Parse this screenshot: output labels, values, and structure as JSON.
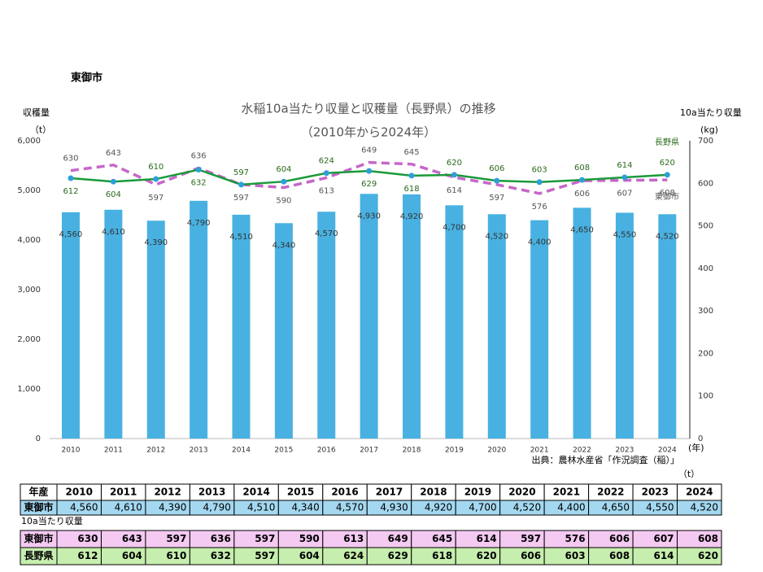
{
  "heading": "東御市",
  "chart_data": {
    "type": "bar-line",
    "title": "水稲10a当たり収量と収穫量（長野県）の推移",
    "subtitle": "（2010年から2024年）",
    "y_label": "収穫量",
    "y_unit": "（t）",
    "y2_label": "10a当たり収量",
    "y2_unit": "(kg)",
    "x_unit": "(年)",
    "categories": [
      "2010",
      "2011",
      "2012",
      "2013",
      "2014",
      "2015",
      "2016",
      "2017",
      "2018",
      "2019",
      "2020",
      "2021",
      "2022",
      "2023",
      "2024"
    ],
    "ylim": [
      0,
      6000
    ],
    "yticks": [
      0,
      {
        "value": 1000,
        "label": "1,000"
      },
      {
        "value": 2000,
        "label": "2,000"
      },
      {
        "value": 3000,
        "label": "3,000"
      },
      {
        "value": 4000,
        "label": "4,000"
      },
      {
        "value": 5000,
        "label": "5,000"
      },
      {
        "value": 6000,
        "label": "6,000"
      }
    ],
    "y2lim": [
      0,
      700
    ],
    "y2ticks": [
      0,
      100,
      200,
      300,
      400,
      500,
      600,
      700
    ],
    "series": [
      {
        "name": "東御市",
        "type": "bar",
        "color": "#48b1e1",
        "values": [
          4560,
          4610,
          4390,
          4790,
          4510,
          4340,
          4570,
          4930,
          4920,
          4700,
          4520,
          4400,
          4650,
          4550,
          4520
        ],
        "value_labels": [
          "4,560",
          "4,610",
          "4,390",
          "4,790",
          "4,510",
          "4,340",
          "4,570",
          "4,930",
          "4,920",
          "4,700",
          "4,520",
          "4,400",
          "4,650",
          "4,550",
          "4,520"
        ]
      },
      {
        "name": "東御市",
        "type": "line",
        "axis": "y2",
        "color": "#c667c9",
        "dashed": true,
        "values": [
          630,
          643,
          597,
          636,
          597,
          590,
          613,
          649,
          645,
          614,
          597,
          576,
          606,
          607,
          608
        ]
      },
      {
        "name": "長野県",
        "type": "line",
        "axis": "y2",
        "color": "#1a9a3a",
        "marker_color": "#2e9fd8",
        "values": [
          612,
          604,
          610,
          632,
          597,
          604,
          624,
          629,
          618,
          620,
          606,
          603,
          608,
          614,
          620
        ]
      }
    ]
  },
  "source": "出典：農林水産省「作況調査（稲）」",
  "table": {
    "unit": "（t）",
    "header": "年産",
    "yield_caption": "10a当たり収量"
  }
}
